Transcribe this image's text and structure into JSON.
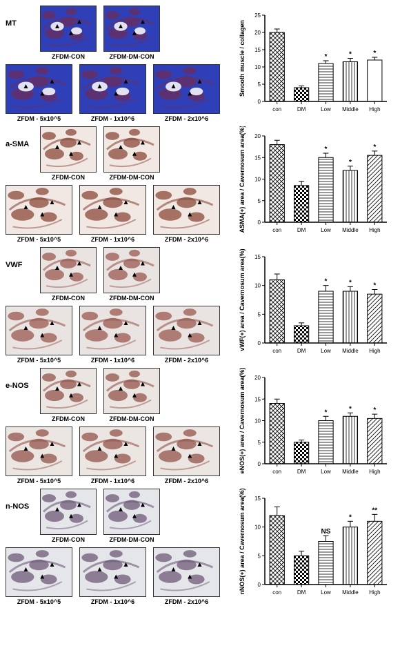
{
  "sections": [
    {
      "key": "mt",
      "label": "MT",
      "chart": {
        "type": "bar",
        "ylabel": "Smooth muscle / collagen",
        "ylim": [
          0,
          25
        ],
        "ytick_step": 5,
        "categories": [
          "con",
          "DM",
          "Low",
          "Middle",
          "High"
        ],
        "values": [
          20,
          4,
          11,
          11.5,
          12
        ],
        "errors": [
          1,
          0.5,
          0.8,
          1,
          0.8
        ],
        "sig": [
          "",
          "",
          "*",
          "*",
          "*"
        ],
        "bar_fill_patterns": [
          "diag-cross",
          "checker",
          "h-lines",
          "v-lines",
          "none"
        ],
        "bar_width": 0.6,
        "axis_color": "#000000",
        "label_fontsize": 9,
        "tick_fontsize": 8,
        "bar_stroke": "#000000"
      }
    },
    {
      "key": "asma",
      "label": "a-SMA",
      "chart": {
        "type": "bar",
        "ylabel": "ASMA(+) area / Cavernosum area(%)",
        "ylim": [
          0,
          20
        ],
        "ytick_step": 5,
        "categories": [
          "con",
          "DM",
          "Low",
          "Middle",
          "High"
        ],
        "values": [
          18,
          8.5,
          15,
          12,
          15.5
        ],
        "errors": [
          1,
          1,
          1,
          1,
          1
        ],
        "sig": [
          "",
          "",
          "*",
          "*",
          "*"
        ],
        "bar_fill_patterns": [
          "diag-cross",
          "checker",
          "h-lines",
          "v-lines",
          "diag-lines"
        ],
        "bar_width": 0.6,
        "axis_color": "#000000",
        "label_fontsize": 9,
        "tick_fontsize": 8,
        "bar_stroke": "#000000"
      }
    },
    {
      "key": "vwf",
      "label": "VWF",
      "chart": {
        "type": "bar",
        "ylabel": "vWF(+) area / Cavernosum area(%)",
        "ylim": [
          0,
          15
        ],
        "ytick_step": 5,
        "categories": [
          "con",
          "DM",
          "Low",
          "Middle",
          "High"
        ],
        "values": [
          11,
          3,
          9,
          9,
          8.5
        ],
        "errors": [
          1,
          0.5,
          1,
          0.8,
          0.8
        ],
        "sig": [
          "",
          "",
          "*",
          "*",
          "*"
        ],
        "bar_fill_patterns": [
          "diag-cross",
          "checker",
          "h-lines",
          "v-lines",
          "diag-lines"
        ],
        "bar_width": 0.6,
        "axis_color": "#000000",
        "label_fontsize": 9,
        "tick_fontsize": 8,
        "bar_stroke": "#000000"
      }
    },
    {
      "key": "enos",
      "label": "e-NOS",
      "chart": {
        "type": "bar",
        "ylabel": "eNOS(+) area / Cavernosum area(%)",
        "ylim": [
          0,
          20
        ],
        "ytick_step": 5,
        "categories": [
          "con",
          "DM",
          "Low",
          "Middle",
          "High"
        ],
        "values": [
          14,
          5,
          10,
          11,
          10.5
        ],
        "errors": [
          1,
          0.5,
          1,
          0.8,
          1
        ],
        "sig": [
          "",
          "",
          "*",
          "*",
          "*"
        ],
        "bar_fill_patterns": [
          "diag-cross",
          "checker",
          "h-lines",
          "v-lines",
          "diag-lines"
        ],
        "bar_width": 0.6,
        "axis_color": "#000000",
        "label_fontsize": 9,
        "tick_fontsize": 8,
        "bar_stroke": "#000000"
      }
    },
    {
      "key": "nnos",
      "label": "n-NOS",
      "chart": {
        "type": "bar",
        "ylabel": "nNOS(+) area / Cavernosum area(%)",
        "ylim": [
          0,
          15
        ],
        "ytick_step": 5,
        "categories": [
          "con",
          "DM",
          "Low",
          "Middle",
          "High"
        ],
        "values": [
          12,
          5,
          7.5,
          10,
          11
        ],
        "errors": [
          1.5,
          0.8,
          1,
          1,
          1.2
        ],
        "sig": [
          "",
          "",
          "NS",
          "*",
          "**"
        ],
        "bar_fill_patterns": [
          "diag-cross",
          "checker",
          "h-lines",
          "v-lines",
          "diag-lines"
        ],
        "bar_width": 0.6,
        "axis_color": "#000000",
        "label_fontsize": 9,
        "tick_fontsize": 8,
        "bar_stroke": "#000000"
      }
    }
  ],
  "image_labels": {
    "top": [
      "ZFDM-CON",
      "ZFDM-DM-CON"
    ],
    "bottom": [
      "ZFDM - 5x10^5",
      "ZFDM - 1x10^6",
      "ZFDM - 2x10^6"
    ]
  },
  "stain_colors": {
    "mt": {
      "bg": "#2f3fb7",
      "fg": "#6b2e5c"
    },
    "asma": {
      "bg": "#f1e8e3",
      "fg": "#8b4a3b"
    },
    "vwf": {
      "bg": "#e9e4e1",
      "fg": "#9a5a50"
    },
    "enos": {
      "bg": "#ece6e3",
      "fg": "#93534a"
    },
    "nnos": {
      "bg": "#e5e6ea",
      "fg": "#6d5a78"
    }
  },
  "thumb_sizes": {
    "top_w": 80,
    "top_h": 65,
    "bot_w": 95,
    "bot_h": 70
  }
}
